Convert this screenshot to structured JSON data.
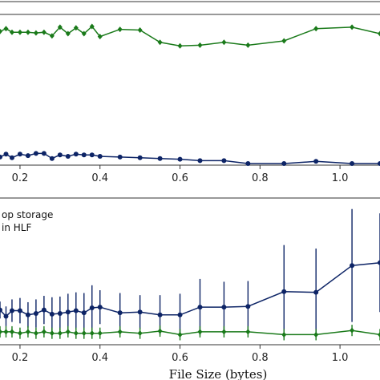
{
  "chart_data": [
    {
      "type": "line",
      "xlim": [
        0.15,
        1.1
      ],
      "ylim": [
        0,
        1
      ],
      "x_ticks": [
        "0.2",
        "0.4",
        "0.6",
        "0.8",
        "1.0"
      ],
      "x_tick_values": [
        0.2,
        0.4,
        0.6,
        0.8,
        1.0
      ],
      "grid": false,
      "series": [
        {
          "color": "#1a7a1a",
          "marker": "diamond",
          "x": [
            0.15,
            0.165,
            0.18,
            0.2,
            0.22,
            0.24,
            0.26,
            0.28,
            0.3,
            0.32,
            0.34,
            0.36,
            0.38,
            0.4,
            0.45,
            0.5,
            0.55,
            0.6,
            0.65,
            0.71,
            0.77,
            0.86,
            0.94,
            1.03,
            1.1
          ],
          "y": [
            0.915,
            0.935,
            0.91,
            0.91,
            0.91,
            0.905,
            0.91,
            0.885,
            0.945,
            0.9,
            0.94,
            0.9,
            0.95,
            0.88,
            0.93,
            0.925,
            0.84,
            0.815,
            0.82,
            0.84,
            0.82,
            0.85,
            0.935,
            0.945,
            0.9
          ]
        },
        {
          "color": "#0d2466",
          "marker": "circle",
          "x": [
            0.15,
            0.165,
            0.18,
            0.2,
            0.22,
            0.24,
            0.26,
            0.28,
            0.3,
            0.32,
            0.34,
            0.36,
            0.38,
            0.4,
            0.45,
            0.5,
            0.55,
            0.6,
            0.65,
            0.71,
            0.77,
            0.86,
            0.94,
            1.03,
            1.1
          ],
          "y": [
            0.045,
            0.065,
            0.04,
            0.065,
            0.055,
            0.07,
            0.07,
            0.035,
            0.06,
            0.05,
            0.065,
            0.06,
            0.06,
            0.05,
            0.045,
            0.04,
            0.035,
            0.03,
            0.02,
            0.02,
            0.0,
            0.0,
            0.015,
            0.0,
            0.0
          ]
        }
      ]
    },
    {
      "type": "line",
      "xlim": [
        0.15,
        1.1
      ],
      "ylim": [
        0,
        1
      ],
      "x_ticks": [
        "0.2",
        "0.4",
        "0.6",
        "0.8",
        "1.0"
      ],
      "x_tick_values": [
        0.2,
        0.4,
        0.6,
        0.8,
        1.0
      ],
      "xlabel": "File Size (bytes)",
      "legend": {
        "placement": "top-left",
        "entries": [
          "op storage",
          "in HLF"
        ]
      },
      "series": [
        {
          "color": "#0d2466",
          "marker": "circle",
          "x": [
            0.15,
            0.165,
            0.18,
            0.2,
            0.22,
            0.24,
            0.26,
            0.28,
            0.3,
            0.32,
            0.34,
            0.36,
            0.38,
            0.4,
            0.45,
            0.5,
            0.55,
            0.6,
            0.65,
            0.71,
            0.77,
            0.86,
            0.94,
            1.03,
            1.1
          ],
          "y": [
            0.235,
            0.19,
            0.23,
            0.23,
            0.2,
            0.21,
            0.235,
            0.205,
            0.21,
            0.22,
            0.23,
            0.215,
            0.25,
            0.255,
            0.215,
            0.22,
            0.2,
            0.2,
            0.255,
            0.255,
            0.26,
            0.365,
            0.36,
            0.55,
            0.57
          ],
          "error": [
            0.06,
            0.07,
            0.08,
            0.09,
            0.09,
            0.1,
            0.1,
            0.12,
            0.12,
            0.13,
            0.13,
            0.14,
            0.16,
            0.12,
            0.14,
            0.12,
            0.14,
            0.15,
            0.2,
            0.18,
            0.18,
            0.33,
            0.31,
            0.4,
            0.35
          ]
        },
        {
          "color": "#1a7a1a",
          "marker": "diamond",
          "x": [
            0.15,
            0.165,
            0.18,
            0.2,
            0.22,
            0.24,
            0.26,
            0.28,
            0.3,
            0.32,
            0.34,
            0.36,
            0.38,
            0.4,
            0.45,
            0.5,
            0.55,
            0.6,
            0.65,
            0.71,
            0.77,
            0.86,
            0.94,
            1.03,
            1.1
          ],
          "y": [
            0.08,
            0.08,
            0.08,
            0.07,
            0.08,
            0.07,
            0.08,
            0.07,
            0.07,
            0.08,
            0.07,
            0.07,
            0.07,
            0.07,
            0.08,
            0.07,
            0.085,
            0.06,
            0.08,
            0.08,
            0.08,
            0.06,
            0.06,
            0.09,
            0.06
          ],
          "error": [
            0.04,
            0.04,
            0.04,
            0.04,
            0.04,
            0.04,
            0.04,
            0.04,
            0.04,
            0.04,
            0.04,
            0.04,
            0.04,
            0.04,
            0.04,
            0.04,
            0.04,
            0.04,
            0.04,
            0.04,
            0.04,
            0.04,
            0.04,
            0.04,
            0.04
          ]
        }
      ]
    }
  ]
}
